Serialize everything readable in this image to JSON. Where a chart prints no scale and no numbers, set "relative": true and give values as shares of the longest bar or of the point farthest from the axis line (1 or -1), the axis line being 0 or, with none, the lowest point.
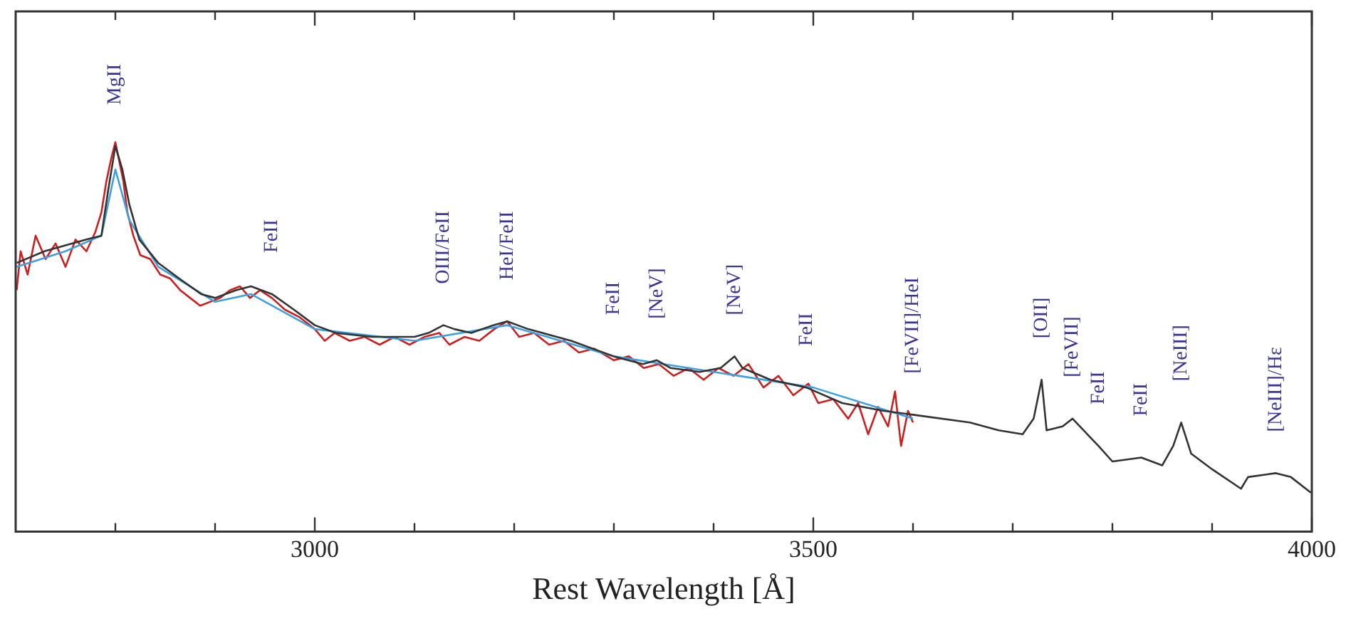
{
  "chart_data": {
    "type": "line",
    "relative": true,
    "xlabel": "Rest Wavelength [Å]",
    "xlim": [
      2700,
      4000
    ],
    "xticks": [
      {
        "value": 2800,
        "label": null
      },
      {
        "value": 2900,
        "label": null
      },
      3000,
      {
        "value": 3100,
        "label": null
      },
      {
        "value": 3200,
        "label": null
      },
      {
        "value": 3300,
        "label": null
      },
      {
        "value": 3400,
        "label": null
      },
      3500,
      {
        "value": 3600,
        "label": null
      },
      {
        "value": 3700,
        "label": null
      },
      {
        "value": 3800,
        "label": null
      },
      {
        "value": 3900,
        "label": null
      },
      4000
    ],
    "grid": false,
    "legend": false,
    "marker": "none",
    "line_style": "solid",
    "series": [
      {
        "color": "#333333",
        "x": [
          2701,
          2729,
          2771,
          2786,
          2793,
          2800,
          2807,
          2814,
          2824,
          2843,
          2864,
          2886,
          2900,
          2921,
          2936,
          2957,
          2979,
          3000,
          3021,
          3057,
          3100,
          3114,
          3129,
          3140,
          3157,
          3179,
          3193,
          3214,
          3257,
          3300,
          3329,
          3343,
          3357,
          3386,
          3407,
          3421,
          3429,
          3457,
          3493,
          3529,
          3571,
          3600,
          3657,
          3686,
          3710,
          3721,
          3729,
          3734,
          3750,
          3760,
          3786,
          3800,
          3829,
          3850,
          3861,
          3869,
          3879,
          3900,
          3929,
          3936,
          3964,
          3979,
          3999
        ],
        "values": [
          0.69,
          0.72,
          0.75,
          0.76,
          0.88,
          0.99,
          0.93,
          0.84,
          0.75,
          0.69,
          0.65,
          0.61,
          0.6,
          0.62,
          0.63,
          0.61,
          0.57,
          0.53,
          0.51,
          0.5,
          0.5,
          0.51,
          0.53,
          0.52,
          0.51,
          0.53,
          0.54,
          0.52,
          0.49,
          0.45,
          0.43,
          0.44,
          0.42,
          0.41,
          0.42,
          0.45,
          0.42,
          0.39,
          0.37,
          0.33,
          0.31,
          0.3,
          0.28,
          0.26,
          0.25,
          0.29,
          0.39,
          0.26,
          0.27,
          0.29,
          0.22,
          0.18,
          0.19,
          0.17,
          0.22,
          0.28,
          0.2,
          0.16,
          0.11,
          0.14,
          0.15,
          0.14,
          0.1
        ]
      },
      {
        "color": "#3fa0e0",
        "x": [
          2701,
          2750,
          2786,
          2800,
          2814,
          2843,
          2900,
          2936,
          3000,
          3100,
          3193,
          3300,
          3400,
          3500,
          3600
        ],
        "values": [
          0.68,
          0.72,
          0.76,
          0.93,
          0.8,
          0.68,
          0.59,
          0.61,
          0.52,
          0.49,
          0.53,
          0.45,
          0.41,
          0.37,
          0.29
        ]
      },
      {
        "color": "#cc2020",
        "x": [
          2701,
          2705,
          2712,
          2720,
          2730,
          2740,
          2750,
          2760,
          2771,
          2780,
          2786,
          2791,
          2796,
          2800,
          2804,
          2808,
          2812,
          2818,
          2825,
          2835,
          2845,
          2855,
          2865,
          2875,
          2885,
          2895,
          2905,
          2915,
          2925,
          2935,
          2945,
          2957,
          2970,
          2985,
          3000,
          3010,
          3020,
          3035,
          3050,
          3065,
          3080,
          3095,
          3110,
          3125,
          3135,
          3150,
          3165,
          3180,
          3193,
          3205,
          3220,
          3235,
          3250,
          3265,
          3280,
          3300,
          3315,
          3330,
          3345,
          3360,
          3375,
          3390,
          3405,
          3420,
          3435,
          3450,
          3465,
          3480,
          3495,
          3505,
          3520,
          3535,
          3545,
          3555,
          3565,
          3575,
          3582,
          3588,
          3595,
          3600
        ],
        "values": [
          0.62,
          0.72,
          0.66,
          0.76,
          0.7,
          0.74,
          0.68,
          0.75,
          0.72,
          0.77,
          0.82,
          0.9,
          0.96,
          1.0,
          0.95,
          0.9,
          0.82,
          0.76,
          0.71,
          0.7,
          0.66,
          0.65,
          0.62,
          0.6,
          0.58,
          0.59,
          0.6,
          0.62,
          0.63,
          0.6,
          0.62,
          0.6,
          0.57,
          0.55,
          0.52,
          0.49,
          0.51,
          0.49,
          0.5,
          0.48,
          0.5,
          0.48,
          0.5,
          0.51,
          0.48,
          0.5,
          0.49,
          0.52,
          0.54,
          0.5,
          0.51,
          0.48,
          0.49,
          0.46,
          0.47,
          0.44,
          0.45,
          0.42,
          0.43,
          0.4,
          0.42,
          0.39,
          0.42,
          0.4,
          0.43,
          0.37,
          0.4,
          0.35,
          0.38,
          0.33,
          0.34,
          0.29,
          0.33,
          0.25,
          0.32,
          0.27,
          0.36,
          0.22,
          0.31,
          0.28
        ]
      }
    ],
    "annotations": [
      {
        "text": "MgII",
        "x": 2800,
        "y": 0.99
      },
      {
        "text": "FeII",
        "x": 2957,
        "y": 0.61
      },
      {
        "text": "OIII/FeII",
        "x": 3129,
        "y": 0.53
      },
      {
        "text": "HeI/FeII",
        "x": 3193,
        "y": 0.54
      },
      {
        "text": "FeII",
        "x": 3300,
        "y": 0.45
      },
      {
        "text": "[NeV]",
        "x": 3343,
        "y": 0.44
      },
      {
        "text": "[NeV]",
        "x": 3421,
        "y": 0.45
      },
      {
        "text": "FeII",
        "x": 3493,
        "y": 0.37
      },
      {
        "text": "[FeVII]/HeI",
        "x": 3600,
        "y": 0.3
      },
      {
        "text": "[OII]",
        "x": 3729,
        "y": 0.39
      },
      {
        "text": "[FeVII]",
        "x": 3760,
        "y": 0.29
      },
      {
        "text": "FeII",
        "x": 3786,
        "y": 0.22
      },
      {
        "text": "FeII",
        "x": 3829,
        "y": 0.19
      },
      {
        "text": "[NeIII]",
        "x": 3869,
        "y": 0.28
      },
      {
        "text": "[NeIII]/Hε",
        "x": 3964,
        "y": 0.15
      }
    ]
  }
}
